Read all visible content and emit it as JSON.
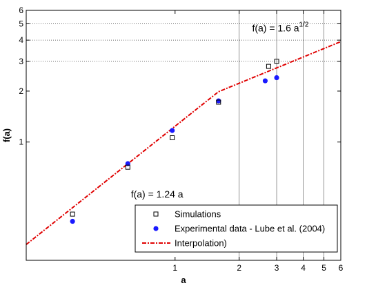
{
  "chart_data": {
    "type": "scatter",
    "xscale": "log",
    "yscale": "log",
    "xlim": [
      0.2,
      6
    ],
    "ylim": [
      0.2,
      6
    ],
    "xlabel": "a",
    "ylabel": "f(a)",
    "x_ticks": [
      1,
      2,
      3,
      4,
      5,
      6
    ],
    "x_tick_labels": [
      "1",
      "2",
      "3",
      "4",
      "5",
      "6"
    ],
    "y_ticks": [
      1,
      2,
      3,
      4,
      5,
      6
    ],
    "y_tick_labels": [
      "1",
      "2",
      "3",
      "4",
      "5",
      "6"
    ],
    "vertical_gridlines": [
      2,
      3,
      4,
      5
    ],
    "horizontal_gridlines": [
      3,
      4,
      5
    ],
    "annotations": [
      {
        "id": "low",
        "text": "f(a) = 1.24 a",
        "x": 0.62,
        "y": 0.47
      },
      {
        "id": "high",
        "text_base": "f(a) = 1.6 a",
        "text_sup": "1/2",
        "x": 2.3,
        "y": 4.5
      }
    ],
    "series": [
      {
        "name": "Simulations",
        "marker": "square-open",
        "color": "#000000",
        "x": [
          0.33,
          0.6,
          0.97,
          1.6,
          2.75,
          3.0
        ],
        "y": [
          0.375,
          0.71,
          1.06,
          1.72,
          2.8,
          3.0
        ]
      },
      {
        "name": "Experimental data - Lube et al. (2004)",
        "marker": "circle-filled",
        "color": "#1a1aff",
        "x": [
          0.33,
          0.6,
          0.97,
          1.6,
          2.65,
          3.0
        ],
        "y": [
          0.34,
          0.745,
          1.17,
          1.75,
          2.3,
          2.4
        ]
      },
      {
        "name": "Interpolation)",
        "marker": "line-dashdot",
        "color": "#e00000",
        "x": [
          0.2,
          1.6,
          6
        ],
        "y": [
          0.248,
          1.984,
          3.919
        ]
      }
    ],
    "legend": {
      "position": "bottom-right"
    }
  }
}
